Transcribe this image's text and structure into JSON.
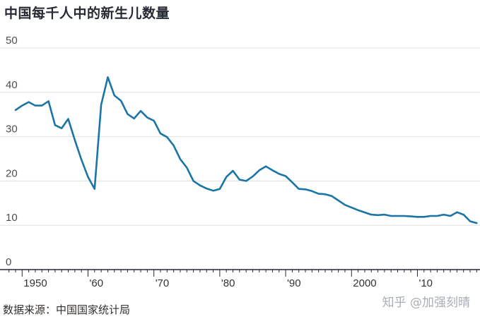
{
  "chart_data": {
    "type": "line",
    "title": "中国每千人中的新生儿数量",
    "source": "数据来源：中国国家统计局",
    "watermark": "知乎 @加强刻晴",
    "xlim": [
      1947.5,
      2019.5
    ],
    "ylim": [
      0,
      50
    ],
    "yticks": [
      0,
      10,
      20,
      30,
      40,
      50
    ],
    "xticks": [
      {
        "value": 1950,
        "label": "1950"
      },
      {
        "value": 1960,
        "label": "'60"
      },
      {
        "value": 1970,
        "label": "'70"
      },
      {
        "value": 1980,
        "label": "'80"
      },
      {
        "value": 1990,
        "label": "'90"
      },
      {
        "value": 2000,
        "label": "2000"
      },
      {
        "value": 2010,
        "label": "'10"
      }
    ],
    "grid": true,
    "color": "#1a75a6",
    "series": [
      {
        "x": [
          1949,
          1950,
          1951,
          1952,
          1953,
          1954,
          1955,
          1956,
          1957,
          1958,
          1959,
          1960,
          1961,
          1962,
          1963,
          1964,
          1965,
          1966,
          1967,
          1968,
          1969,
          1970,
          1971,
          1972,
          1973,
          1974,
          1975,
          1976,
          1977,
          1978,
          1979,
          1980,
          1981,
          1982,
          1983,
          1984,
          1985,
          1986,
          1987,
          1988,
          1989,
          1990,
          1991,
          1992,
          1993,
          1994,
          1995,
          1996,
          1997,
          1998,
          1999,
          2000,
          2001,
          2002,
          2003,
          2004,
          2005,
          2006,
          2007,
          2008,
          2009,
          2010,
          2011,
          2012,
          2013,
          2014,
          2015,
          2016,
          2017,
          2018,
          2019
        ],
        "values": [
          36.0,
          37.0,
          37.8,
          37.0,
          37.0,
          38.0,
          32.6,
          31.9,
          34.0,
          29.2,
          24.8,
          20.9,
          18.2,
          37.2,
          43.4,
          39.3,
          38.1,
          35.1,
          34.1,
          35.8,
          34.3,
          33.6,
          30.7,
          29.9,
          28.0,
          24.9,
          23.0,
          20.0,
          19.0,
          18.3,
          17.8,
          18.2,
          20.9,
          22.3,
          20.3,
          20.0,
          21.0,
          22.4,
          23.3,
          22.4,
          21.6,
          21.1,
          19.7,
          18.2,
          18.1,
          17.7,
          17.1,
          17.0,
          16.6,
          15.6,
          14.6,
          14.0,
          13.4,
          12.9,
          12.4,
          12.3,
          12.4,
          12.1,
          12.1,
          12.1,
          12.0,
          11.9,
          11.9,
          12.1,
          12.1,
          12.4,
          12.1,
          12.95,
          12.4,
          10.9,
          10.5
        ]
      }
    ]
  }
}
